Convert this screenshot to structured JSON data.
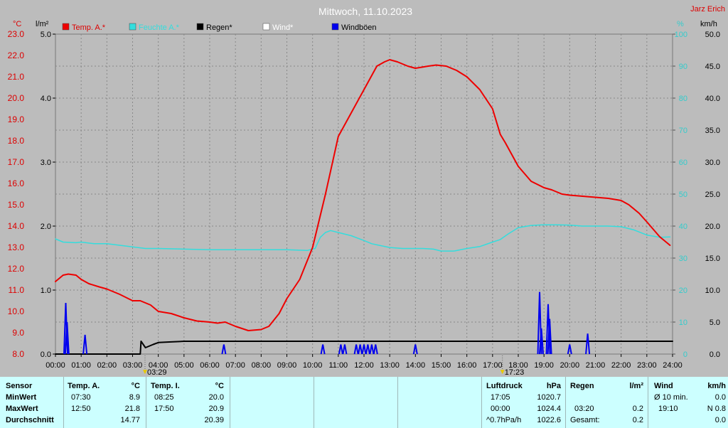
{
  "title": "Mittwoch, 11.10.2023",
  "station": "Jarz Erich",
  "colors": {
    "temp": "#ee0000",
    "humidity": "#33dddd",
    "rain": "#000000",
    "wind": "#ffffff",
    "gust": "#0000ee",
    "temp_axis": "#dd0000",
    "humidity_axis": "#33cccc",
    "plot_bg": "#bcbcbc",
    "grid": "#888888",
    "panel_bg": "#ccffff"
  },
  "units": {
    "temp": "°C",
    "rain": "l/m²",
    "humidity": "%",
    "wind": "km/h"
  },
  "legend": [
    {
      "label": "Temp. A.*",
      "color": "#ee0000"
    },
    {
      "label": "Feuchte A.*",
      "color": "#33dddd"
    },
    {
      "label": "Regen*",
      "color": "#000000"
    },
    {
      "label": "Wind*",
      "color": "#ffffff"
    },
    {
      "label": "Windböen",
      "color": "#0000ee"
    }
  ],
  "markers": {
    "sunrise": "03:29",
    "sunset": "17:23"
  },
  "chart_data": {
    "type": "line",
    "title": "Mittwoch, 11.10.2023",
    "x_ticks": [
      "00:00",
      "01:00",
      "02:00",
      "03:00",
      "04:00",
      "05:00",
      "06:00",
      "07:00",
      "08:00",
      "09:00",
      "10:00",
      "11:00",
      "12:00",
      "13:00",
      "14:00",
      "15:00",
      "16:00",
      "17:00",
      "18:00",
      "19:00",
      "20:00",
      "21:00",
      "22:00",
      "23:00",
      "24:00"
    ],
    "x_range_hours": [
      0,
      24
    ],
    "axes": {
      "temp": {
        "ticks": [
          "8.0",
          "9.0",
          "10.0",
          "11.0",
          "12.0",
          "13.0",
          "14.0",
          "15.0",
          "16.0",
          "17.0",
          "18.0",
          "19.0",
          "20.0",
          "21.0",
          "22.0",
          "23.0"
        ],
        "range": [
          8,
          23
        ]
      },
      "rain": {
        "ticks": [
          "0.0",
          "1.0",
          "2.0",
          "3.0",
          "4.0",
          "5.0"
        ],
        "range": [
          0,
          5
        ]
      },
      "humidity": {
        "ticks": [
          "0",
          "10",
          "20",
          "30",
          "40",
          "50",
          "60",
          "70",
          "80",
          "90",
          "100"
        ],
        "range": [
          0,
          100
        ]
      },
      "wind": {
        "ticks": [
          "0.0",
          "5.0",
          "10.0",
          "15.0",
          "20.0",
          "25.0",
          "30.0",
          "35.0",
          "40.0",
          "45.0",
          "50.0"
        ],
        "range": [
          0,
          50
        ]
      }
    },
    "grid": true,
    "series": [
      {
        "name": "Temp. A.*",
        "axis": "temp",
        "x": [
          0,
          0.3,
          0.5,
          0.8,
          1.0,
          1.3,
          1.7,
          2.0,
          2.5,
          3.0,
          3.3,
          3.7,
          4.0,
          4.5,
          5.0,
          5.5,
          6.0,
          6.3,
          6.6,
          7.0,
          7.5,
          8.0,
          8.3,
          8.7,
          9.0,
          9.5,
          10.0,
          10.5,
          11.0,
          11.5,
          12.0,
          12.5,
          12.8,
          13.0,
          13.3,
          13.7,
          14.0,
          14.5,
          14.8,
          15.2,
          15.6,
          16.0,
          16.5,
          17.0,
          17.3,
          17.5,
          18.0,
          18.5,
          19.0,
          19.3,
          19.7,
          20.0,
          20.5,
          21.0,
          21.5,
          22.0,
          22.3,
          22.7,
          23.0,
          23.5,
          23.9
        ],
        "y": [
          11.4,
          11.7,
          11.75,
          11.7,
          11.5,
          11.3,
          11.15,
          11.05,
          10.8,
          10.5,
          10.5,
          10.3,
          10.0,
          9.9,
          9.7,
          9.55,
          9.5,
          9.45,
          9.5,
          9.3,
          9.1,
          9.15,
          9.3,
          9.9,
          10.6,
          11.5,
          13.0,
          15.5,
          18.2,
          19.3,
          20.4,
          21.5,
          21.7,
          21.8,
          21.7,
          21.5,
          21.4,
          21.5,
          21.55,
          21.5,
          21.3,
          21.0,
          20.4,
          19.5,
          18.3,
          17.9,
          16.8,
          16.1,
          15.8,
          15.7,
          15.5,
          15.45,
          15.4,
          15.35,
          15.3,
          15.2,
          15.0,
          14.6,
          14.2,
          13.5,
          13.1
        ]
      },
      {
        "name": "Feuchte A.*",
        "axis": "humidity",
        "x": [
          0,
          0.3,
          0.8,
          1.0,
          1.5,
          2.0,
          3.0,
          3.5,
          4.0,
          5.0,
          6.0,
          7.0,
          8.0,
          9.0,
          9.8,
          10.1,
          10.3,
          10.5,
          10.7,
          11.0,
          11.5,
          12.0,
          12.3,
          12.7,
          13.0,
          13.5,
          14.0,
          14.3,
          14.7,
          15.0,
          15.5,
          16.0,
          16.5,
          17.0,
          17.3,
          17.6,
          18.0,
          18.5,
          19.0,
          19.5,
          20.0,
          20.5,
          21.0,
          21.5,
          22.0,
          22.5,
          23.0,
          23.5,
          23.9
        ],
        "y": [
          36,
          35,
          34.8,
          35,
          34.5,
          34.5,
          33.5,
          33,
          33,
          32.8,
          32.6,
          32.6,
          32.6,
          32.6,
          32.4,
          33,
          36.5,
          38,
          38.6,
          38,
          37,
          35.5,
          34.5,
          33.8,
          33.3,
          33,
          33,
          33,
          32.8,
          32.2,
          32.2,
          33,
          33.6,
          35,
          35.8,
          37.5,
          39.5,
          40.2,
          40.4,
          40.4,
          40.3,
          40,
          40,
          40,
          39.8,
          38.8,
          37.2,
          36.5,
          36.6
        ]
      },
      {
        "name": "Regen*",
        "axis": "rain",
        "x": [
          0,
          3.3,
          3.33,
          3.5,
          3.8,
          4.0,
          4.5,
          5.0,
          24.0
        ],
        "y": [
          0,
          0,
          0.2,
          0.1,
          0.15,
          0.18,
          0.19,
          0.2,
          0.2
        ]
      },
      {
        "name": "Windböen",
        "axis": "wind",
        "spikes": [
          {
            "t": 0.4,
            "v": 8.0
          },
          {
            "t": 0.45,
            "v": 5.0
          },
          {
            "t": 1.15,
            "v": 3.0
          },
          {
            "t": 6.55,
            "v": 1.5
          },
          {
            "t": 10.4,
            "v": 1.5
          },
          {
            "t": 11.1,
            "v": 1.5
          },
          {
            "t": 11.25,
            "v": 1.5
          },
          {
            "t": 11.7,
            "v": 1.5
          },
          {
            "t": 11.85,
            "v": 1.5
          },
          {
            "t": 12.0,
            "v": 1.5
          },
          {
            "t": 12.15,
            "v": 1.5
          },
          {
            "t": 12.3,
            "v": 1.5
          },
          {
            "t": 12.45,
            "v": 1.5
          },
          {
            "t": 14.0,
            "v": 1.5
          },
          {
            "t": 18.83,
            "v": 9.7
          },
          {
            "t": 18.9,
            "v": 4.0
          },
          {
            "t": 19.16,
            "v": 7.8
          },
          {
            "t": 19.22,
            "v": 5.5
          },
          {
            "t": 20.0,
            "v": 1.5
          },
          {
            "t": 20.7,
            "v": 3.2
          }
        ]
      }
    ]
  },
  "stats": {
    "temp_a": {
      "sensor_label": "Sensor",
      "rows": [
        "MinWert",
        "MaxWert",
        "Durchschnitt"
      ],
      "header": "Temp. A.",
      "unit": "°C",
      "min_time": "07:30",
      "min": "8.9",
      "max_time": "12:50",
      "max": "21.8",
      "avg": "14.77"
    },
    "temp_i": {
      "header": "Temp. I.",
      "unit": "°C",
      "min_time": "08:25",
      "min": "20.0",
      "max_time": "17:50",
      "max": "20.9",
      "avg": "20.39"
    },
    "pressure": {
      "header": "Luftdruck",
      "unit": "hPa",
      "min_time": "17:05",
      "min": "1020.7",
      "max_time": "00:00",
      "max": "1024.4",
      "avg_label": "^0.7hPa/h",
      "avg": "1022.6"
    },
    "rain": {
      "header": "Regen",
      "unit": "l/m²",
      "time": "03:20",
      "value": "0.2",
      "total_label": "Gesamt:",
      "total": "0.2"
    },
    "wind": {
      "header": "Wind",
      "unit": "km/h",
      "avg_label": "Ø 10 min.",
      "avg": "0.0",
      "max_time": "19:10",
      "max": "N 0.8",
      "avg2": "0.0"
    }
  }
}
